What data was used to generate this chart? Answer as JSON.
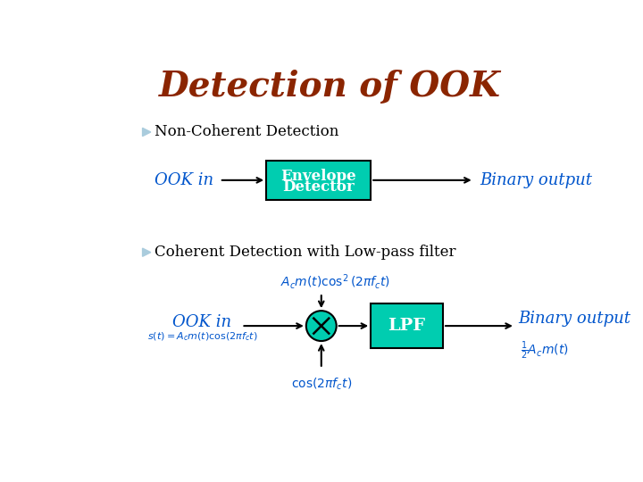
{
  "title": "Detection of OOK",
  "title_color": "#8B2500",
  "bg_color": "#FFFFFF",
  "blue": "#0055CC",
  "box_fill": "#00CDB0",
  "box_edge": "#000000",
  "bullet_color": "#AACCDD",
  "section1_label": "Non-Coherent Detection",
  "section2_label": "Coherent Detection with Low-pass filter",
  "ook_in_label": "OOK in",
  "binary_out_label": "Binary output",
  "envelope_line1": "Envelope",
  "envelope_line2": "Detector",
  "lpf_label": "LPF"
}
